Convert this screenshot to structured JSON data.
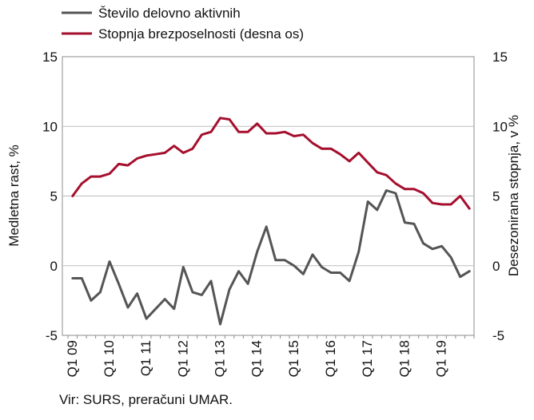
{
  "chart_data": {
    "type": "line",
    "legend": {
      "position": "top-left",
      "items": [
        {
          "label": "Število delovno aktivnih",
          "color": "#555555"
        },
        {
          "label": "Stopnja brezposelnosti (desna os)",
          "color": "#a50f2d"
        }
      ]
    },
    "ylabel_left": "Medletna rast, %",
    "ylabel_right": "Desezonirana stopnja, v %",
    "ylim": [
      -5,
      15
    ],
    "y_ticks": [
      -5,
      0,
      5,
      10,
      15
    ],
    "grid": true,
    "x_tick_labels": [
      "Q1 09",
      "Q1 10",
      "Q1 11",
      "Q1 12",
      "Q1 13",
      "Q1 14",
      "Q1 15",
      "Q1 16",
      "Q1 17",
      "Q1 18",
      "Q1 19"
    ],
    "x_tick_start_index": [
      0,
      4,
      8,
      12,
      16,
      20,
      24,
      28,
      32,
      36,
      40
    ],
    "series": [
      {
        "name": "Število delovno aktivnih",
        "color": "#555555",
        "axis": "left",
        "values": [
          -0.9,
          -0.9,
          -2.5,
          -1.9,
          0.3,
          -1.3,
          -3.0,
          -2.0,
          -3.8,
          -3.1,
          -2.4,
          -3.1,
          -0.1,
          -1.9,
          -2.1,
          -1.1,
          -4.2,
          -1.7,
          -0.4,
          -1.3,
          1.0,
          2.8,
          0.4,
          0.4,
          0.0,
          -0.6,
          0.8,
          -0.1,
          -0.5,
          -0.5,
          -1.1,
          1.0,
          4.6,
          4.0,
          5.4,
          5.2,
          3.1,
          3.0,
          1.6,
          1.2,
          1.4,
          0.6,
          -0.8,
          -0.4
        ]
      },
      {
        "name": "Stopnja brezposelnosti (desna os)",
        "color": "#a50f2d",
        "axis": "right",
        "values": [
          5.0,
          5.9,
          6.4,
          6.4,
          6.6,
          7.3,
          7.2,
          7.7,
          7.9,
          8.0,
          8.1,
          8.6,
          8.1,
          8.4,
          9.4,
          9.6,
          10.6,
          10.5,
          9.6,
          9.6,
          10.2,
          9.5,
          9.5,
          9.6,
          9.3,
          9.4,
          8.8,
          8.4,
          8.4,
          8.0,
          7.5,
          8.1,
          7.4,
          6.7,
          6.5,
          5.9,
          5.5,
          5.5,
          5.2,
          4.5,
          4.4,
          4.4,
          5.0,
          4.1
        ]
      }
    ]
  },
  "footer": {
    "source": "Vir: SURS, preračuni UMAR."
  }
}
